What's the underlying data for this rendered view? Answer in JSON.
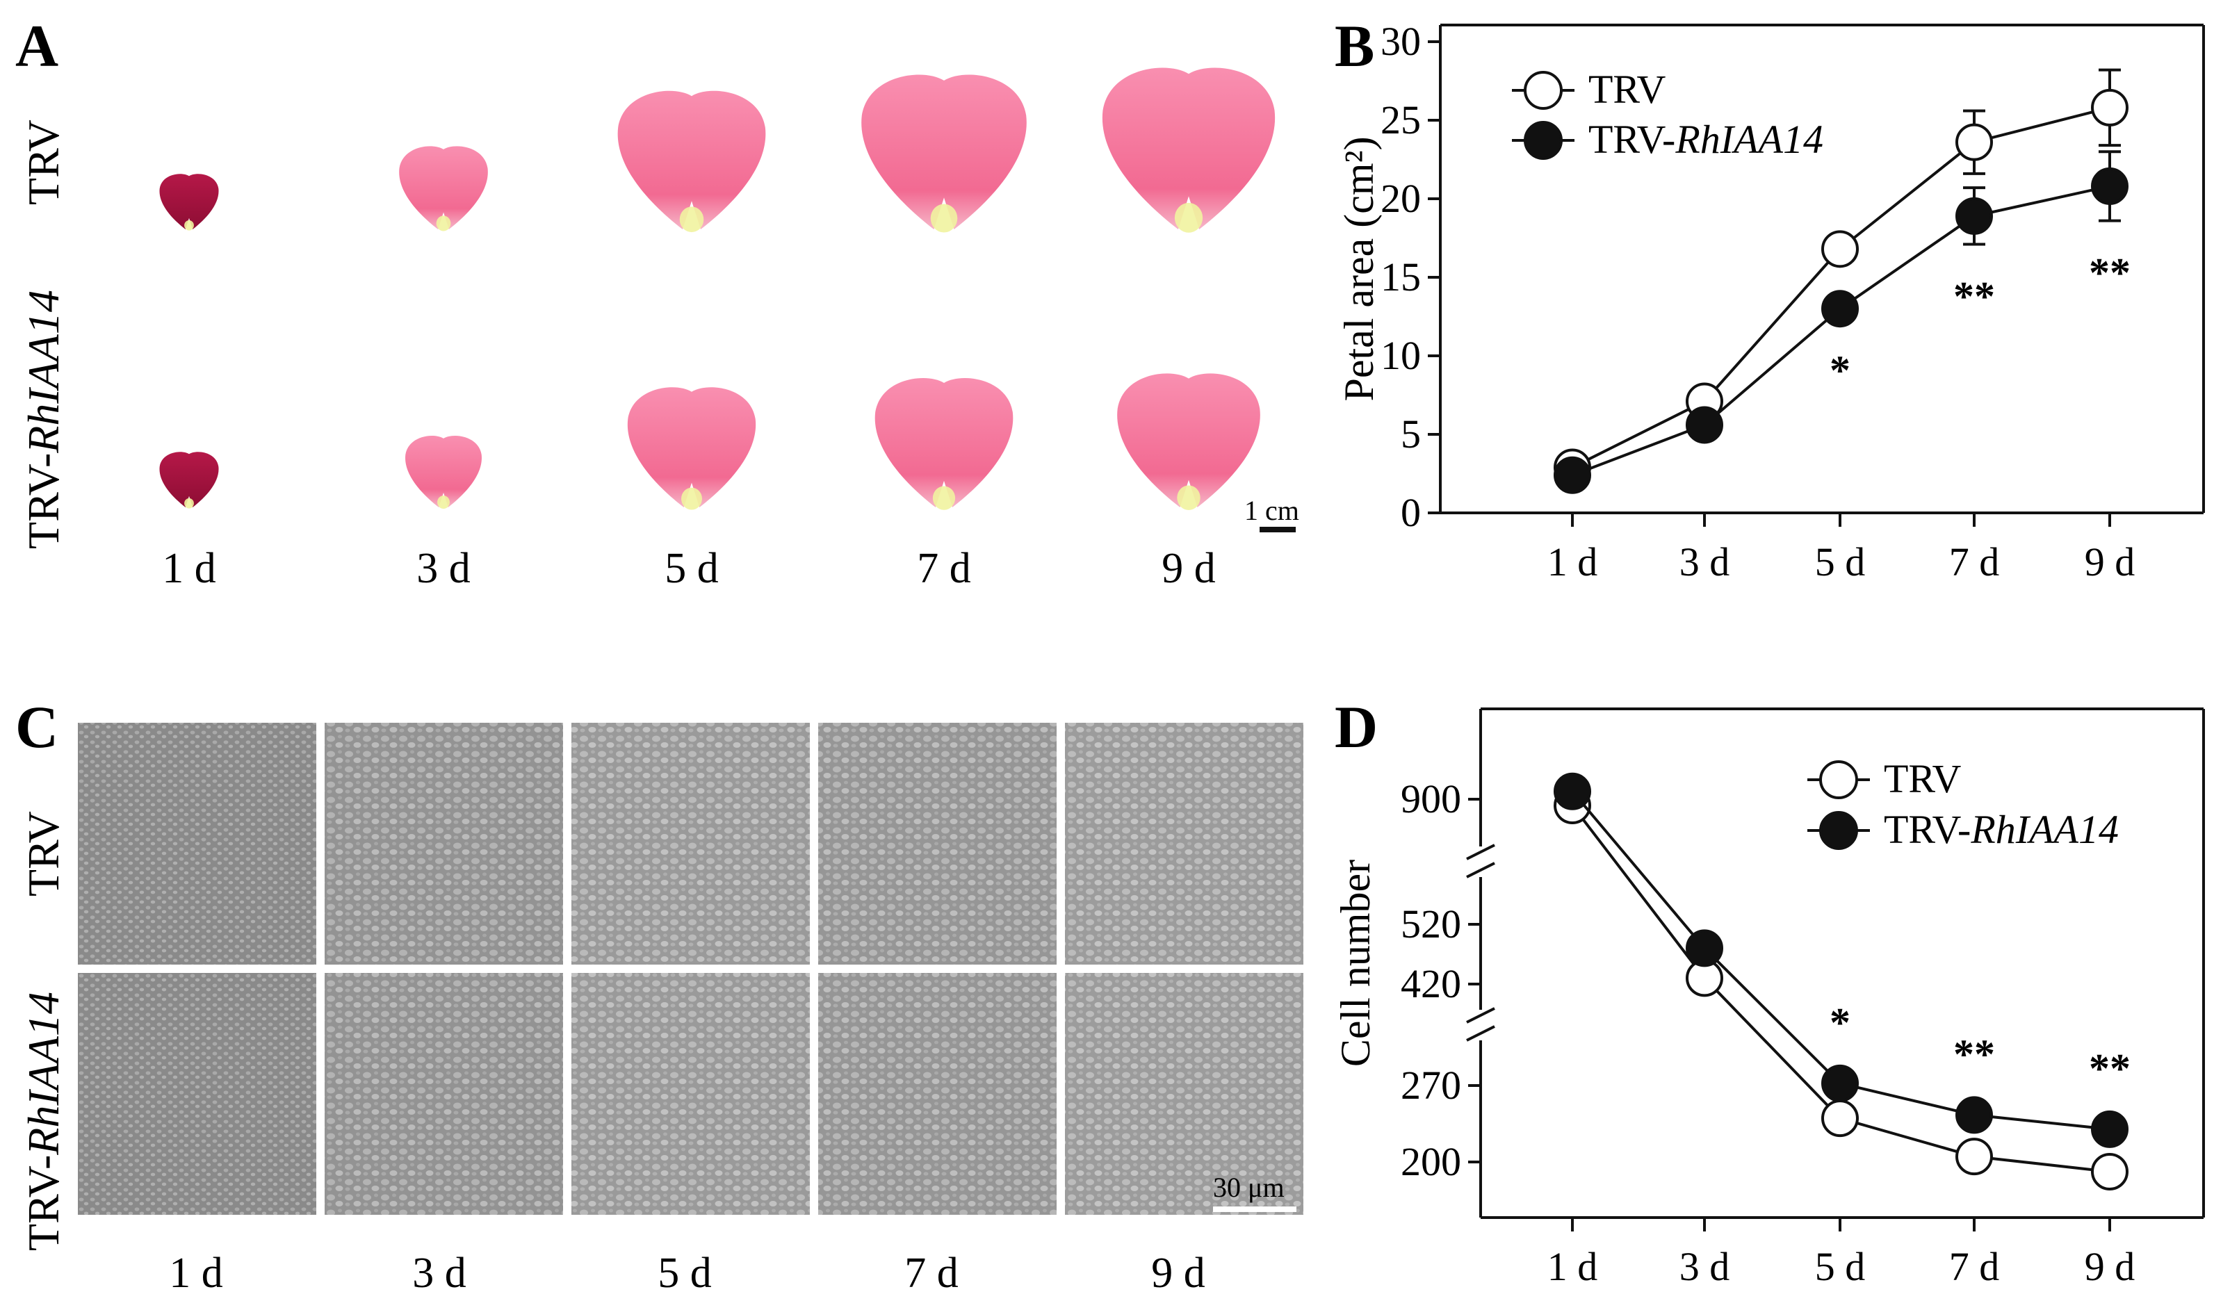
{
  "panels": {
    "A": {
      "letter": "A",
      "row_labels": [
        "TRV",
        "TRV-",
        "RhIAA14"
      ],
      "day_labels": [
        "1 d",
        "3 d",
        "5 d",
        "7 d",
        "9 d"
      ],
      "scale_bar": "1 cm",
      "petal_scale": {
        "TRV": [
          0.24,
          0.36,
          0.6,
          0.67,
          0.7
        ],
        "TRV-RhIAA14": [
          0.24,
          0.31,
          0.52,
          0.56,
          0.58
        ]
      },
      "colors": {
        "petal_dark": "#a3123f",
        "petal_pink": "#f26a92",
        "petal_light": "#f98fb0",
        "petal_base": "#f1f3a0"
      }
    },
    "B": {
      "letter": "B",
      "legend": {
        "trv": "TRV",
        "rh_prefix": "TRV-",
        "rh_italic": "RhIAA14"
      }
    },
    "C": {
      "letter": "C",
      "row_labels": [
        "TRV",
        "TRV-",
        "RhIAA14"
      ],
      "day_labels": [
        "1 d",
        "3 d",
        "5 d",
        "7 d",
        "9 d"
      ],
      "scale_bar": "30 μm",
      "tile_brightness": [
        0.55,
        0.62,
        0.72,
        0.66,
        0.74
      ]
    },
    "D": {
      "letter": "D",
      "legend": {
        "trv": "TRV",
        "rh_prefix": "TRV-",
        "rh_italic": "RhIAA14"
      }
    }
  },
  "chart_data": [
    {
      "id": "B",
      "type": "line",
      "title": "",
      "xlabel": "",
      "ylabel": "Petal area (cm²)",
      "categories": [
        "1 d",
        "3 d",
        "5 d",
        "7 d",
        "9 d"
      ],
      "ylim": [
        0,
        30
      ],
      "yticks": [
        0,
        5,
        10,
        15,
        20,
        25,
        30
      ],
      "series": [
        {
          "name": "TRV",
          "marker": "open-circle",
          "values": [
            2.9,
            7.1,
            16.8,
            23.6,
            25.8
          ],
          "errors": [
            0.4,
            0.8,
            0.7,
            2.0,
            2.4
          ]
        },
        {
          "name": "TRV-RhIAA14",
          "marker": "filled-circle",
          "values": [
            2.4,
            5.6,
            13.0,
            18.9,
            20.8
          ],
          "errors": [
            0.3,
            0.6,
            0.6,
            1.8,
            2.2
          ]
        }
      ],
      "significance": [
        {
          "category": "5 d",
          "label": "*"
        },
        {
          "category": "7 d",
          "label": "**"
        },
        {
          "category": "9 d",
          "label": "**"
        }
      ]
    },
    {
      "id": "D",
      "type": "line",
      "title": "",
      "xlabel": "",
      "ylabel": "Cell number",
      "categories": [
        "1 d",
        "3 d",
        "5 d",
        "7 d",
        "9 d"
      ],
      "broken_axis": true,
      "yticks": [
        200,
        270,
        420,
        520,
        900
      ],
      "series": [
        {
          "name": "TRV",
          "marker": "open-circle",
          "values": [
            890,
            430,
            240,
            205,
            190
          ],
          "errors": [
            8,
            12,
            10,
            10,
            10
          ]
        },
        {
          "name": "TRV-RhIAA14",
          "marker": "filled-circle",
          "values": [
            910,
            480,
            272,
            243,
            230
          ],
          "errors": [
            8,
            10,
            8,
            8,
            8
          ]
        }
      ],
      "significance": [
        {
          "category": "5 d",
          "label": "*"
        },
        {
          "category": "7 d",
          "label": "**"
        },
        {
          "category": "9 d",
          "label": "**"
        }
      ]
    }
  ]
}
